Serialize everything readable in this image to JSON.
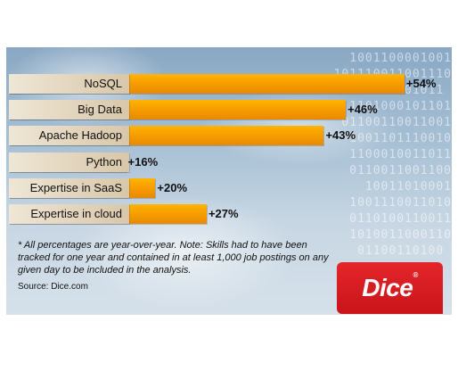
{
  "chart_data": {
    "type": "bar",
    "orientation": "horizontal",
    "categories": [
      "NoSQL",
      "Big Data",
      "Apache Hadoop",
      "Python",
      "Expertise in SaaS",
      "Expertise in cloud"
    ],
    "values": [
      54,
      46,
      43,
      16,
      20,
      27
    ],
    "value_labels": [
      "+54%",
      "+46%",
      "+43%",
      "+16%",
      "+20%",
      "+27%"
    ],
    "grid": false,
    "legend": "none",
    "colors": {
      "bar": "#f59a00",
      "label_box": "#d8c7a9"
    }
  },
  "footnote": "* All percentages are year-over-year. Note: Skills had to have been tracked for one year and contained in at least 1,000 job postings on any given day to be included in the analysis.",
  "source": "Source: Dice.com",
  "logo": {
    "text": "Dice",
    "mark": "®",
    "color": "#d61b20"
  }
}
